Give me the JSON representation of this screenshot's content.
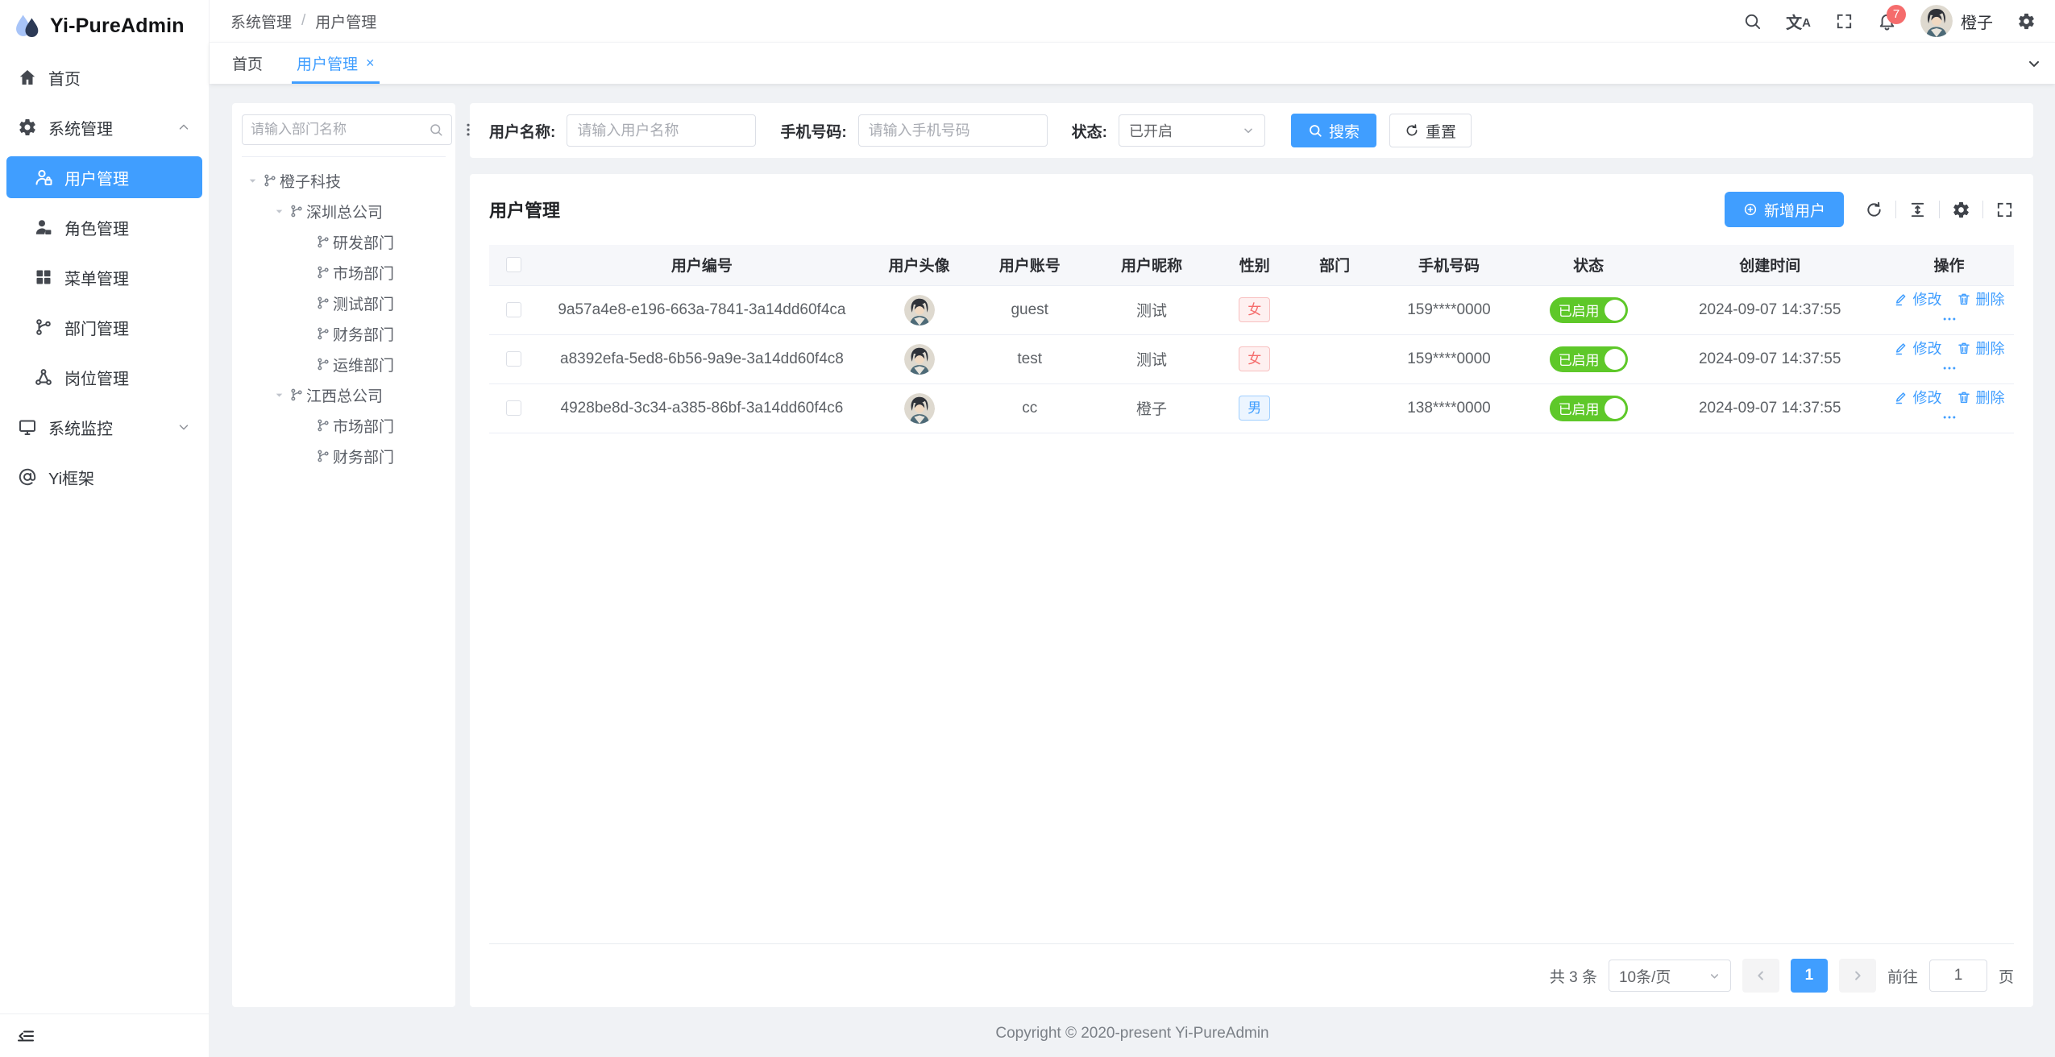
{
  "app": {
    "name": "Yi-PureAdmin"
  },
  "header": {
    "breadcrumb": [
      "系统管理",
      "用户管理"
    ],
    "separator": "/",
    "notification_count": "7",
    "username": "橙子"
  },
  "tabs": {
    "items": [
      {
        "label": "首页",
        "active": false,
        "closable": false
      },
      {
        "label": "用户管理",
        "active": true,
        "closable": true
      }
    ],
    "close_glyph": "×"
  },
  "sidebar": {
    "items": [
      {
        "key": "home",
        "icon": "home-icon",
        "label": "首页",
        "indent": 0
      },
      {
        "key": "system-management",
        "icon": "gear-icon",
        "label": "系统管理",
        "indent": 0,
        "chevron": "up"
      },
      {
        "key": "user-management",
        "icon": "user-lock-icon",
        "label": "用户管理",
        "indent": 1,
        "active": true
      },
      {
        "key": "role-management",
        "icon": "user-solid-icon",
        "label": "角色管理",
        "indent": 1
      },
      {
        "key": "menu-management",
        "icon": "grid-icon",
        "label": "菜单管理",
        "indent": 1
      },
      {
        "key": "dept-management",
        "icon": "branch-icon",
        "label": "部门管理",
        "indent": 1
      },
      {
        "key": "post-management",
        "icon": "nodes-icon",
        "label": "岗位管理",
        "indent": 1
      },
      {
        "key": "system-monitor",
        "icon": "monitor-icon",
        "label": "系统监控",
        "indent": 0,
        "chevron": "down"
      },
      {
        "key": "yi-framework",
        "icon": "at-icon",
        "label": "Yi框架",
        "indent": 0
      }
    ]
  },
  "dept_panel": {
    "search_placeholder": "请输入部门名称",
    "tree": [
      {
        "label": "橙子科技",
        "depth": 0,
        "expanded": true
      },
      {
        "label": "深圳总公司",
        "depth": 1,
        "expanded": true
      },
      {
        "label": "研发部门",
        "depth": 2
      },
      {
        "label": "市场部门",
        "depth": 2
      },
      {
        "label": "测试部门",
        "depth": 2
      },
      {
        "label": "财务部门",
        "depth": 2
      },
      {
        "label": "运维部门",
        "depth": 2
      },
      {
        "label": "江西总公司",
        "depth": 1,
        "expanded": true
      },
      {
        "label": "市场部门",
        "depth": 2
      },
      {
        "label": "财务部门",
        "depth": 2
      }
    ]
  },
  "filters": {
    "name_label": "用户名称:",
    "name_placeholder": "请输入用户名称",
    "phone_label": "手机号码:",
    "phone_placeholder": "请输入手机号码",
    "status_label": "状态:",
    "status_value": "已开启",
    "search_button": "搜索",
    "reset_button": "重置"
  },
  "card": {
    "title": "用户管理",
    "add_button": "新增用户"
  },
  "table": {
    "columns": [
      "用户编号",
      "用户头像",
      "用户账号",
      "用户昵称",
      "性别",
      "部门",
      "手机号码",
      "状态",
      "创建时间",
      "操作"
    ],
    "rows": [
      {
        "id": "9a57a4e8-e196-663a-7841-3a14dd60f4ca",
        "account": "guest",
        "nickname": "测试",
        "gender": "女",
        "gender_type": "female",
        "dept": "",
        "phone": "159****0000",
        "status": "已启用",
        "created": "2024-09-07 14:37:55"
      },
      {
        "id": "a8392efa-5ed8-6b56-9a9e-3a14dd60f4c8",
        "account": "test",
        "nickname": "测试",
        "gender": "女",
        "gender_type": "female",
        "dept": "",
        "phone": "159****0000",
        "status": "已启用",
        "created": "2024-09-07 14:37:55"
      },
      {
        "id": "4928be8d-3c34-a385-86bf-3a14dd60f4c6",
        "account": "cc",
        "nickname": "橙子",
        "gender": "男",
        "gender_type": "male",
        "dept": "",
        "phone": "138****0000",
        "status": "已启用",
        "created": "2024-09-07 14:37:55"
      }
    ],
    "actions": {
      "edit": "修改",
      "delete": "删除"
    }
  },
  "pagination": {
    "total": "共 3 条",
    "page_size": "10条/页",
    "current_page": "1",
    "goto_label": "前往",
    "goto_value": "1",
    "page_unit": "页"
  },
  "footer": {
    "copyright": "Copyright © 2020-present Yi-PureAdmin"
  },
  "colors": {
    "primary": "#409eff",
    "success": "#5ec829",
    "danger": "#f56c6c"
  }
}
